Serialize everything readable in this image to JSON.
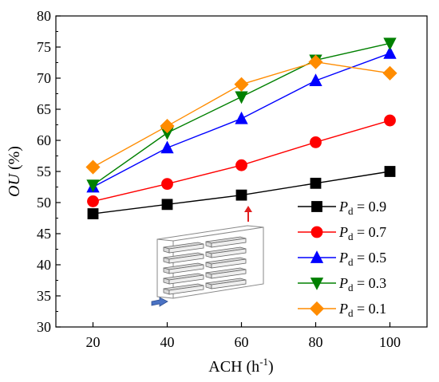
{
  "chart_data": {
    "type": "line",
    "x": [
      20,
      40,
      60,
      80,
      100
    ],
    "xlabel": "ACH (h",
    "xlabel_sup": "-1",
    "xlabel_close": ")",
    "ylabel_italic": "OU",
    "ylabel_rest": " (%)",
    "xlim": [
      10,
      110
    ],
    "ylim": [
      30,
      80
    ],
    "xticks": [
      20,
      40,
      60,
      80,
      100
    ],
    "yticks": [
      30,
      35,
      40,
      45,
      50,
      55,
      60,
      65,
      70,
      75,
      80
    ],
    "grid": false,
    "legend_position": "bottom-right",
    "series": [
      {
        "name_var": "P",
        "name_sub": "d",
        "name_eq": " = ",
        "name_val": "0.9",
        "color": "#000000",
        "marker": "square",
        "values": [
          48.2,
          49.7,
          51.2,
          53.1,
          55.0
        ]
      },
      {
        "name_var": "P",
        "name_sub": "d",
        "name_eq": " = ",
        "name_val": "0.7",
        "color": "#ff0000",
        "marker": "circle",
        "values": [
          50.2,
          53.0,
          56.0,
          59.7,
          63.2
        ]
      },
      {
        "name_var": "P",
        "name_sub": "d",
        "name_eq": " = ",
        "name_val": "0.5",
        "color": "#0000ff",
        "marker": "triangle-up",
        "values": [
          52.5,
          58.8,
          63.5,
          69.6,
          74.0
        ]
      },
      {
        "name_var": "P",
        "name_sub": "d",
        "name_eq": " = ",
        "name_val": "0.3",
        "color": "#008000",
        "marker": "triangle-down",
        "values": [
          52.8,
          61.2,
          67.0,
          72.9,
          75.6
        ]
      },
      {
        "name_var": "P",
        "name_sub": "d",
        "name_eq": " = ",
        "name_val": "0.1",
        "color": "#ff8c00",
        "marker": "diamond",
        "values": [
          55.7,
          62.3,
          69.0,
          72.6,
          70.8
        ]
      }
    ],
    "inset": {
      "kind": "room-schematic",
      "icons": [
        "shelving-room-icon",
        "inlet-arrow-icon",
        "outlet-arrow-icon"
      ]
    }
  }
}
